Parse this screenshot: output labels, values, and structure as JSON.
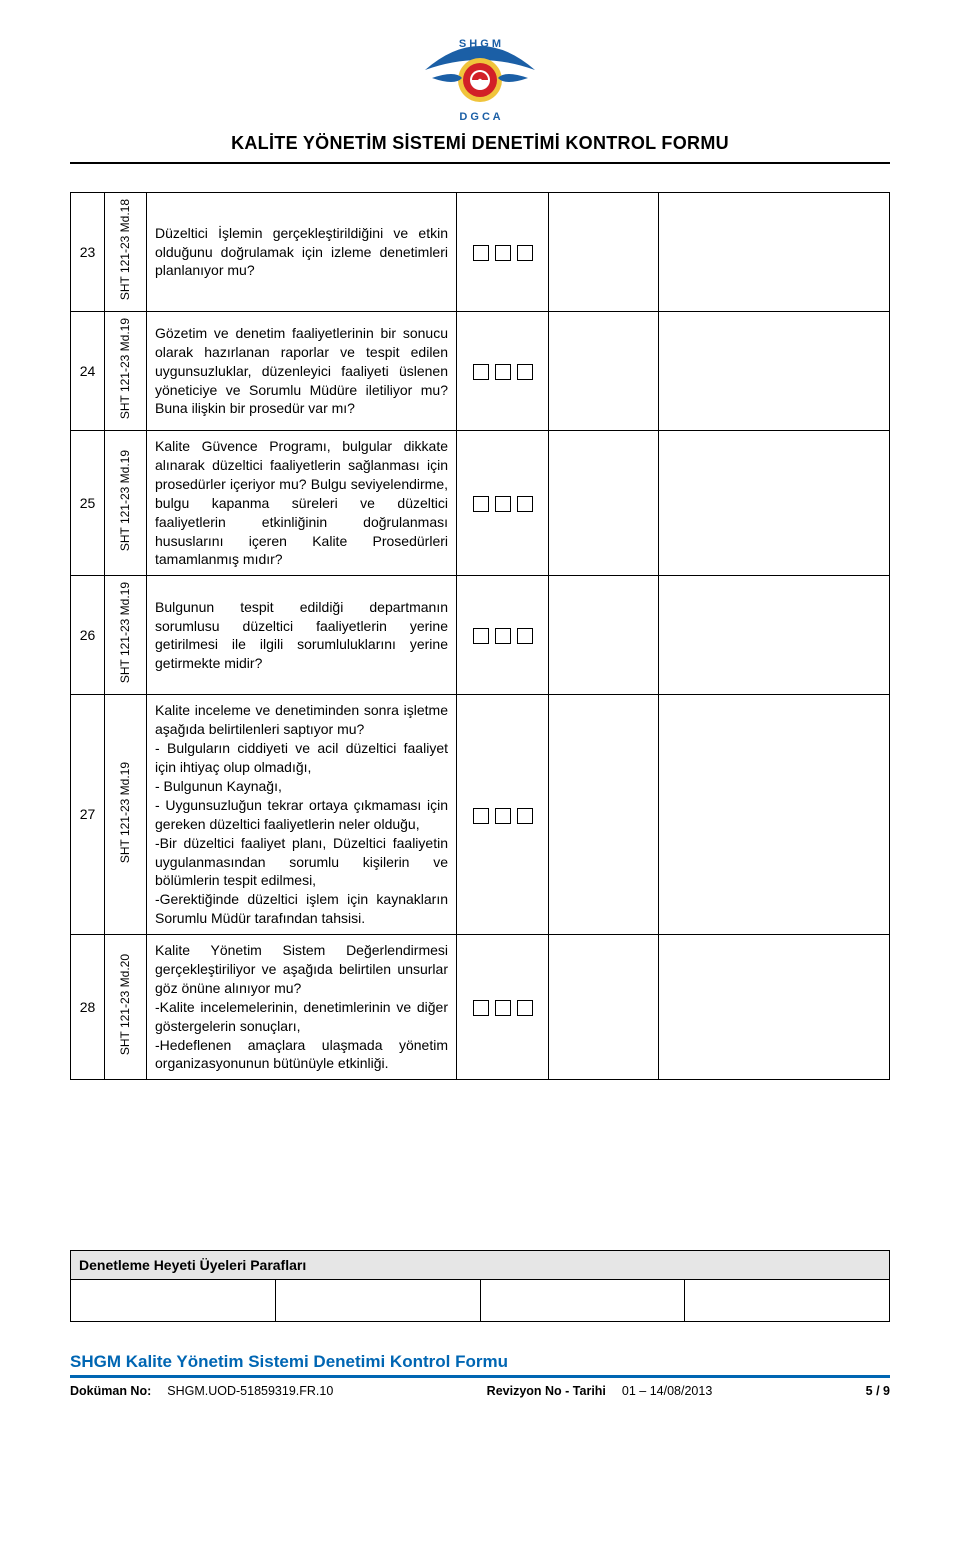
{
  "header": {
    "title": "KALİTE YÖNETİM SİSTEMİ DENETİMİ KONTROL FORMU",
    "logo": {
      "top_text": "SHGM",
      "bottom_text": "DGCA",
      "wing_color": "#1b5fa6",
      "circle_outer": "#f0c43c",
      "circle_red": "#d22027",
      "circle_white": "#ffffff"
    }
  },
  "rows": [
    {
      "num": "23",
      "ref": "SHT 121-23 Md.18",
      "desc": "Düzeltici İşlemin gerçekleştirildiğini ve etkin olduğunu doğrulamak için izleme denetimleri planlanıyor mu?"
    },
    {
      "num": "24",
      "ref": "SHT 121-23 Md.19",
      "desc": "Gözetim ve denetim faaliyetlerinin bir sonucu olarak hazırlanan raporlar ve tespit edilen uygunsuzluklar, düzenleyici faaliyeti üslenen yöneticiye ve Sorumlu Müdüre iletiliyor mu? Buna ilişkin bir prosedür var mı?"
    },
    {
      "num": "25",
      "ref": "SHT 121-23 Md.19",
      "desc": "Kalite Güvence Programı, bulgular dikkate alınarak düzeltici faaliyetlerin sağlanması için prosedürler içeriyor mu? Bulgu seviyelendirme, bulgu kapanma süreleri ve düzeltici faaliyetlerin etkinliğinin doğrulanması hususlarını içeren Kalite Prosedürleri tamamlanmış mıdır?"
    },
    {
      "num": "26",
      "ref": "SHT 121-23 Md.19",
      "desc": "Bulgunun tespit edildiği departmanın sorumlusu düzeltici faaliyetlerin yerine getirilmesi ile ilgili sorumluluklarını yerine getirmekte midir?"
    },
    {
      "num": "27",
      "ref": "SHT 121-23 Md.19",
      "desc": "Kalite inceleme ve denetiminden sonra işletme aşağıda belirtilenleri saptıyor mu?\n- Bulguların ciddiyeti ve acil düzeltici faaliyet için ihtiyaç olup olmadığı,\n- Bulgunun Kaynağı,\n- Uygunsuzluğun tekrar ortaya çıkmaması için gereken düzeltici faaliyetlerin neler olduğu,\n-Bir düzeltici faaliyet planı, Düzeltici faaliyetin uygulanmasından sorumlu kişilerin ve bölümlerin tespit edilmesi,\n-Gerektiğinde düzeltici işlem için kaynakların Sorumlu Müdür tarafından tahsisi."
    },
    {
      "num": "28",
      "ref": "SHT 121-23 Md.20",
      "desc": "Kalite Yönetim Sistem Değerlendirmesi gerçekleştiriliyor ve aşağıda belirtilen unsurlar göz önüne alınıyor mu?\n-Kalite incelemelerinin, denetimlerinin ve diğer göstergelerin sonuçları,\n-Hedeflenen amaçlara ulaşmada yönetim organizasyonunun bütünüyle etkinliği."
    }
  ],
  "signature_label": "Denetleme Heyeti Üyeleri Parafları",
  "footer": {
    "title": "SHGM Kalite Yönetim Sistemi Denetimi Kontrol Formu",
    "doc_no_label": "Doküman No:",
    "doc_no": "SHGM.UOD-51859319.FR.10",
    "rev_label": "Revizyon No - Tarihi",
    "rev_value": "01 – 14/08/2013",
    "page": "5 / 9",
    "title_color": "#0066b3"
  }
}
